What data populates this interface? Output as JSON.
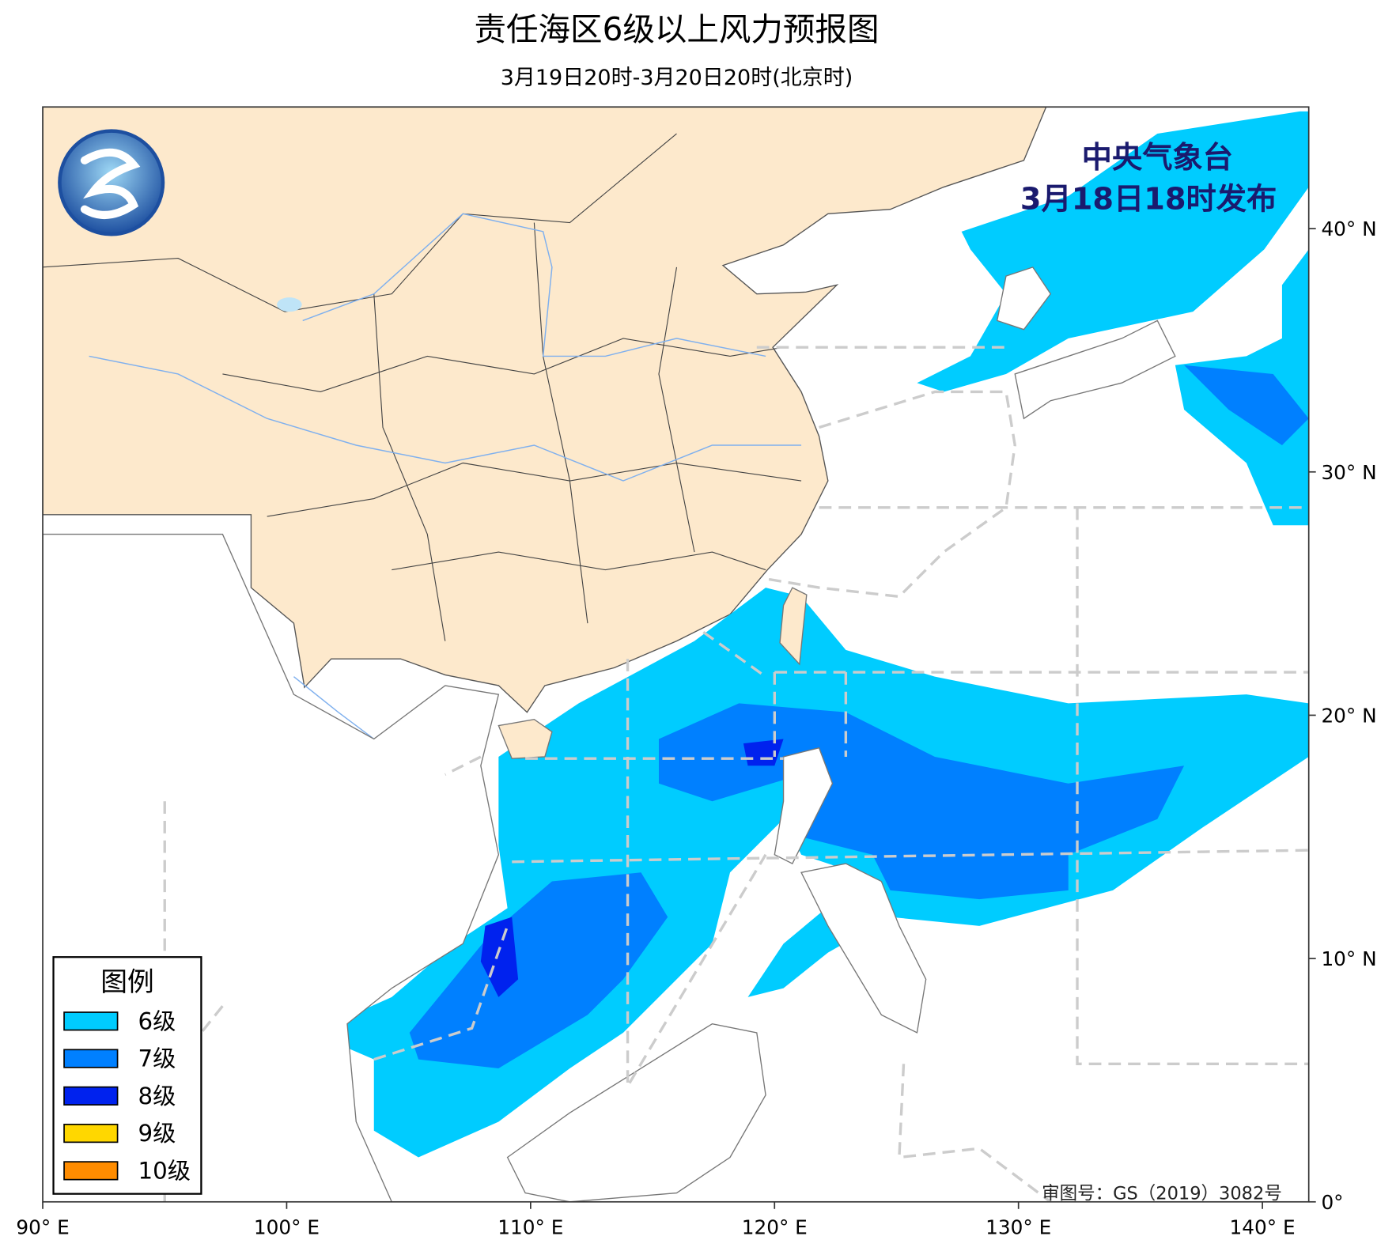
{
  "header": {
    "title": "责任海区6级以上风力预报图",
    "subtitle": "3月19日20时-3月20日20时(北京时)"
  },
  "issuer": {
    "name": "中央气象台",
    "time": "3月18日18时发布"
  },
  "approval": "审图号：GS（2019）3082号",
  "map": {
    "xlim": [
      90,
      141.9
    ],
    "ylim": [
      0,
      45
    ],
    "xticks": [
      {
        "value": 90,
        "label": "90° E"
      },
      {
        "value": 100,
        "label": "100° E"
      },
      {
        "value": 110,
        "label": "110° E"
      },
      {
        "value": 120,
        "label": "120° E"
      },
      {
        "value": 130,
        "label": "130° E"
      },
      {
        "value": 140,
        "label": "140° E"
      }
    ],
    "yticks": [
      {
        "value": 0,
        "label": "0°"
      },
      {
        "value": 10,
        "label": "10° N"
      },
      {
        "value": 20,
        "label": "20° N"
      },
      {
        "value": 30,
        "label": "30° N"
      },
      {
        "value": 40,
        "label": "40° N"
      }
    ]
  },
  "legend": {
    "title": "图例",
    "items": [
      {
        "label": "6级",
        "color": "#00ccff"
      },
      {
        "label": "7级",
        "color": "#0080ff"
      },
      {
        "label": "8级",
        "color": "#0022ee"
      },
      {
        "label": "9级",
        "color": "#ffd700"
      },
      {
        "label": "10级",
        "color": "#ff8c00"
      }
    ]
  }
}
